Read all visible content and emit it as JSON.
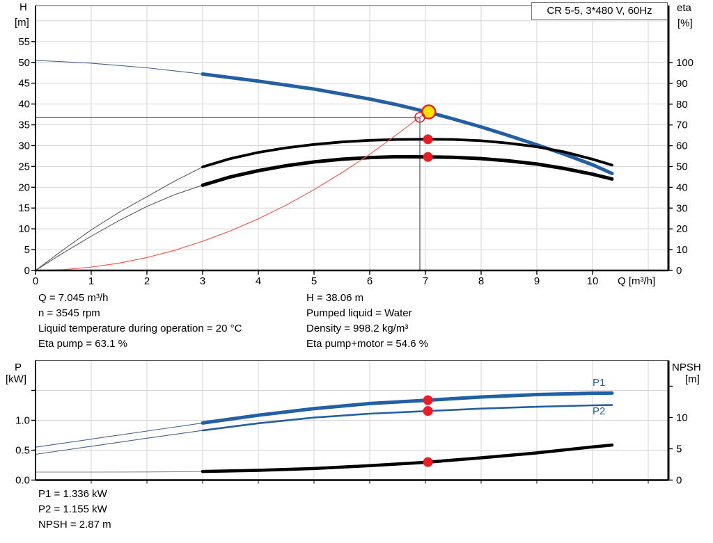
{
  "annotations": {
    "operating_left": [
      "Q = 7.045 m³/h",
      "n = 3545 rpm",
      "Liquid temperature during operation = 20 °C",
      "Eta pump = 63.1 %"
    ],
    "operating_right": [
      "H = 38.06 m",
      "Pumped liquid = Water",
      "Density = 998.2 kg/m³",
      "Eta pump+motor = 54.6 %"
    ],
    "power_block": [
      "P1 = 1.336 kW",
      "P2 = 1.155 kW",
      "NPSH = 2.87 m"
    ]
  },
  "colors": {
    "curve_blue": "#235fa4",
    "curve_black": "#000000",
    "system_red": "#f25c4f",
    "marker_red": "#ed1c24",
    "marker_yellow": "#ffe400",
    "grid": "#d4d4d4"
  },
  "chart_data": [
    {
      "type": "line",
      "name": "head-efficiency-chart",
      "title": "CR 5-5, 3*480 V, 60Hz",
      "x_axis": {
        "label": "Q [m³/h]",
        "min": 0,
        "max": 11.36,
        "tick_labels": [
          0,
          1,
          2,
          3,
          4,
          5,
          6,
          7,
          8,
          9,
          10
        ],
        "grid_q": [
          1,
          2,
          3,
          4,
          5,
          6,
          7,
          8,
          9,
          10,
          11
        ]
      },
      "y_left": {
        "label": "H",
        "unit": "[m]",
        "min": 0,
        "max": 63.7,
        "tick_values": [
          0,
          5,
          10,
          15,
          20,
          25,
          30,
          35,
          40,
          45,
          50,
          55
        ],
        "grid_values": [
          5,
          10,
          15,
          20,
          25,
          30,
          35,
          40,
          45,
          50,
          55,
          60
        ]
      },
      "y_right": {
        "label": "eta",
        "unit": "[%]",
        "min": 0,
        "max": 127,
        "tick_values": [
          0,
          10,
          20,
          30,
          40,
          50,
          60,
          70,
          80,
          90,
          100
        ]
      },
      "crosshair": {
        "q": 6.9,
        "h": 36.8
      },
      "series": [
        {
          "name": "qh-curve",
          "axis": "left",
          "color": "#235fa4",
          "thin_color": "#41618e",
          "width": 5,
          "split_q": 3,
          "points": [
            [
              0,
              50.5
            ],
            [
              1,
              49.8
            ],
            [
              2,
              48.7
            ],
            [
              3,
              47.2
            ],
            [
              4,
              45.5
            ],
            [
              5,
              43.6
            ],
            [
              6,
              41.2
            ],
            [
              6.5,
              39.8
            ],
            [
              7,
              38.2
            ],
            [
              7.045,
              38.06
            ],
            [
              7.5,
              36.4
            ],
            [
              8,
              34.5
            ],
            [
              8.5,
              32.4
            ],
            [
              9,
              30.2
            ],
            [
              9.5,
              27.9
            ],
            [
              10,
              25.4
            ],
            [
              10.35,
              23.3
            ]
          ]
        },
        {
          "name": "eta-pump-curve",
          "axis": "right",
          "color": "#000000",
          "thin_color": "#5a5a5a",
          "width": 3.8,
          "split_q": 3,
          "points": [
            [
              0,
              0
            ],
            [
              0.5,
              10
            ],
            [
              1,
              19.5
            ],
            [
              1.5,
              28
            ],
            [
              2,
              35.5
            ],
            [
              2.5,
              43
            ],
            [
              3,
              49.8
            ],
            [
              3.5,
              53.8
            ],
            [
              4,
              56.8
            ],
            [
              4.5,
              59
            ],
            [
              5,
              60.6
            ],
            [
              5.5,
              61.8
            ],
            [
              6,
              62.6
            ],
            [
              6.5,
              63
            ],
            [
              7.045,
              63.1
            ],
            [
              7.5,
              63
            ],
            [
              8,
              62.4
            ],
            [
              8.5,
              61.2
            ],
            [
              9,
              59.5
            ],
            [
              9.5,
              57
            ],
            [
              10,
              53.5
            ],
            [
              10.35,
              50.7
            ]
          ]
        },
        {
          "name": "eta-pump-motor-curve",
          "axis": "right",
          "color": "#000000",
          "thin_color": "#5a5a5a",
          "width": 5,
          "split_q": 3,
          "points": [
            [
              0,
              0
            ],
            [
              0.5,
              8.5
            ],
            [
              1,
              16.5
            ],
            [
              1.5,
              24
            ],
            [
              2,
              30.8
            ],
            [
              2.5,
              36.5
            ],
            [
              3,
              41
            ],
            [
              3.5,
              45
            ],
            [
              4,
              48
            ],
            [
              4.5,
              50.4
            ],
            [
              5,
              52.2
            ],
            [
              5.5,
              53.5
            ],
            [
              6,
              54.3
            ],
            [
              6.5,
              54.7
            ],
            [
              7.045,
              54.6
            ],
            [
              7.5,
              54.4
            ],
            [
              8,
              53.8
            ],
            [
              8.5,
              52.7
            ],
            [
              9,
              51.2
            ],
            [
              9.5,
              49
            ],
            [
              10,
              46.3
            ],
            [
              10.35,
              44
            ]
          ]
        },
        {
          "name": "system-curve",
          "axis": "left",
          "color": "#f25c4f",
          "thin_color": "#f25c4f",
          "width": 1.2,
          "points": [
            [
              0,
              0
            ],
            [
              0.5,
              0.2
            ],
            [
              1,
              0.8
            ],
            [
              1.5,
              1.75
            ],
            [
              2,
              3.1
            ],
            [
              2.5,
              4.85
            ],
            [
              3,
              7
            ],
            [
              3.5,
              9.5
            ],
            [
              4,
              12.4
            ],
            [
              4.5,
              15.7
            ],
            [
              5,
              19.4
            ],
            [
              5.5,
              23.5
            ],
            [
              6,
              27.9
            ],
            [
              6.5,
              32.8
            ],
            [
              6.9,
              36.9
            ],
            [
              7.05,
              38.1
            ]
          ]
        }
      ],
      "markers": [
        {
          "name": "duty-point",
          "style": "yellow",
          "axis": "left",
          "q": 7.06,
          "v": 38.1
        },
        {
          "name": "rated-point",
          "style": "hollow",
          "axis": "left",
          "q": 6.9,
          "v": 36.8
        },
        {
          "name": "eta-pump-point",
          "style": "dot",
          "axis": "right",
          "q": 7.045,
          "v": 63.1
        },
        {
          "name": "eta-pump-motor-point",
          "style": "dot",
          "axis": "right",
          "q": 7.045,
          "v": 54.6
        }
      ]
    },
    {
      "type": "line",
      "name": "power-npsh-chart",
      "x_axis": {
        "min": 0,
        "max": 11.36,
        "grid_q": [
          1,
          2,
          3,
          4,
          5,
          6,
          7,
          8,
          9,
          10,
          11
        ]
      },
      "y_left": {
        "label": "P",
        "unit": "[kW]",
        "min": 0,
        "max": 2.0,
        "tick_values": [
          0,
          0.5,
          1
        ],
        "tick_labels": [
          "0.0",
          "0.5",
          "1.0"
        ],
        "unlabeled_ticks": [
          1.5
        ],
        "grid_values": [
          0.5,
          1.0,
          1.5
        ]
      },
      "y_right": {
        "label": "NPSH",
        "unit": "[m]",
        "min": 0,
        "max": 19.1,
        "tick_values": [
          0,
          5,
          10
        ],
        "tick_labels": [
          "0",
          "5",
          "10"
        ],
        "unlabeled_ticks": [
          15
        ]
      },
      "series": [
        {
          "name": "p1-curve",
          "label": "P1",
          "axis": "left",
          "color": "#235fa4",
          "thin_color": "#41618e",
          "width": 5,
          "split_q": 3,
          "points": [
            [
              0,
              0.55
            ],
            [
              1,
              0.685
            ],
            [
              2,
              0.82
            ],
            [
              3,
              0.955
            ],
            [
              4,
              1.085
            ],
            [
              5,
              1.195
            ],
            [
              6,
              1.28
            ],
            [
              7.045,
              1.336
            ],
            [
              8,
              1.39
            ],
            [
              9,
              1.43
            ],
            [
              10,
              1.452
            ],
            [
              10.35,
              1.455
            ]
          ]
        },
        {
          "name": "p2-curve",
          "label": "P2",
          "axis": "left",
          "color": "#235fa4",
          "thin_color": "#41618e",
          "width": 2.6,
          "split_q": 3,
          "points": [
            [
              0,
              0.43
            ],
            [
              1,
              0.565
            ],
            [
              2,
              0.7
            ],
            [
              3,
              0.83
            ],
            [
              4,
              0.95
            ],
            [
              5,
              1.045
            ],
            [
              6,
              1.11
            ],
            [
              7.045,
              1.155
            ],
            [
              8,
              1.195
            ],
            [
              9,
              1.225
            ],
            [
              10,
              1.25
            ],
            [
              10.35,
              1.255
            ]
          ]
        },
        {
          "name": "npsh-curve",
          "axis": "right",
          "color": "#000000",
          "thin_color": "#8a8a8a",
          "width": 4.5,
          "split_q": 3,
          "points": [
            [
              0,
              1.28
            ],
            [
              1,
              1.28
            ],
            [
              2,
              1.3
            ],
            [
              3,
              1.38
            ],
            [
              4,
              1.55
            ],
            [
              5,
              1.85
            ],
            [
              6,
              2.3
            ],
            [
              7.045,
              2.87
            ],
            [
              8,
              3.55
            ],
            [
              9,
              4.35
            ],
            [
              10,
              5.3
            ],
            [
              10.35,
              5.6
            ]
          ]
        }
      ],
      "markers": [
        {
          "name": "p1-point",
          "style": "dot",
          "axis": "left",
          "q": 7.045,
          "v": 1.336
        },
        {
          "name": "p2-point",
          "style": "dot",
          "axis": "left",
          "q": 7.045,
          "v": 1.155
        },
        {
          "name": "npsh-point",
          "style": "dot",
          "axis": "right",
          "q": 7.045,
          "v": 2.87
        }
      ]
    }
  ]
}
